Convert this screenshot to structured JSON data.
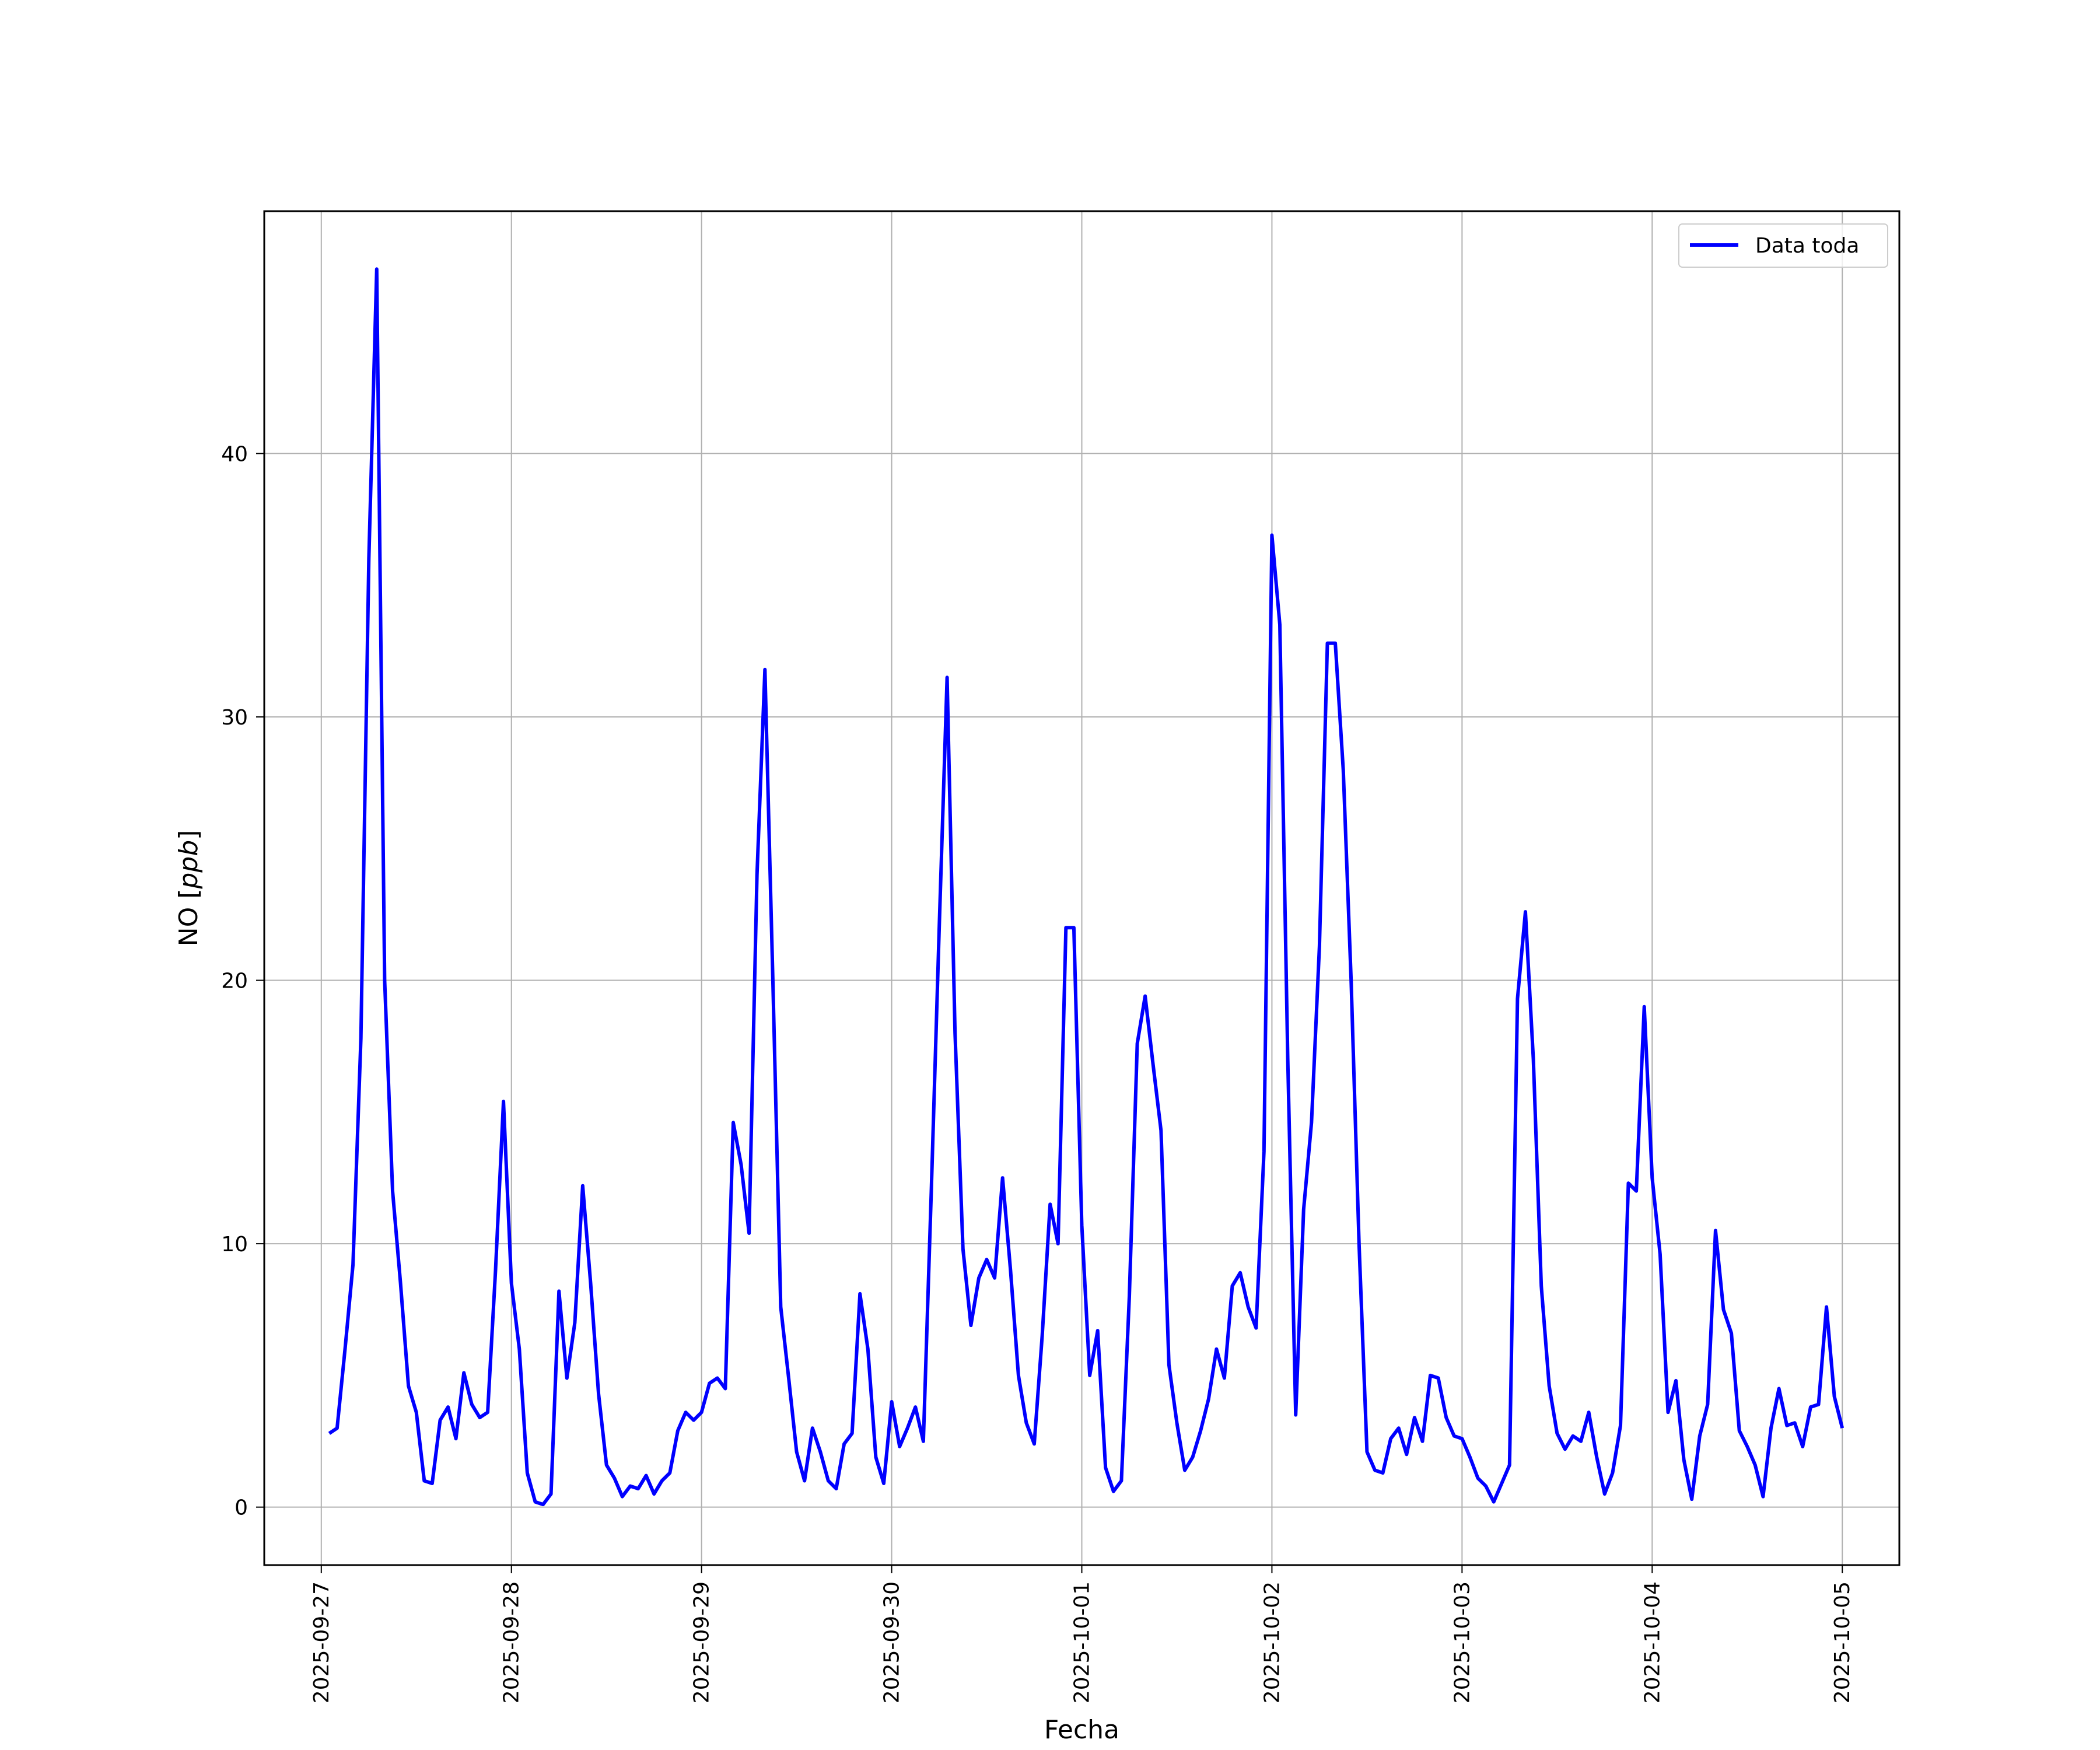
{
  "chart_data": {
    "type": "line",
    "xlabel": "Fecha",
    "ylabel": "NO [ppb]",
    "ylabel_parts": {
      "prefix": "NO [",
      "unit": "ppb",
      "suffix": "]"
    },
    "xlim": [
      "2025-09-26T16:48",
      "2025-10-05T07:12"
    ],
    "ylim": [
      -2.2,
      49.2
    ],
    "x_ticks": [
      "2025-09-27",
      "2025-09-28",
      "2025-09-29",
      "2025-09-30",
      "2025-10-01",
      "2025-10-02",
      "2025-10-03",
      "2025-10-04",
      "2025-10-05"
    ],
    "y_ticks": [
      0,
      10,
      20,
      30,
      40
    ],
    "y_tick_labels": [
      "0",
      "10",
      "20",
      "30",
      "40"
    ],
    "grid": true,
    "legend_position": "top-right",
    "colors": {
      "series": "#0000ff",
      "grid": "#b0b0b0",
      "axes": "#000000"
    },
    "series": [
      {
        "name": "Data toda",
        "x": [
          "2025-09-27T01:00",
          "2025-09-27T02:00",
          "2025-09-27T03:00",
          "2025-09-27T04:00",
          "2025-09-27T05:00",
          "2025-09-27T06:00",
          "2025-09-27T07:00",
          "2025-09-27T08:00",
          "2025-09-27T09:00",
          "2025-09-27T10:00",
          "2025-09-27T11:00",
          "2025-09-27T12:00",
          "2025-09-27T13:00",
          "2025-09-27T14:00",
          "2025-09-27T15:00",
          "2025-09-27T16:00",
          "2025-09-27T17:00",
          "2025-09-27T18:00",
          "2025-09-27T19:00",
          "2025-09-27T20:00",
          "2025-09-27T21:00",
          "2025-09-27T22:00",
          "2025-09-27T23:00",
          "2025-09-28T00:00",
          "2025-09-28T01:00",
          "2025-09-28T02:00",
          "2025-09-28T03:00",
          "2025-09-28T04:00",
          "2025-09-28T05:00",
          "2025-09-28T06:00",
          "2025-09-28T07:00",
          "2025-09-28T08:00",
          "2025-09-28T09:00",
          "2025-09-28T10:00",
          "2025-09-28T11:00",
          "2025-09-28T12:00",
          "2025-09-28T13:00",
          "2025-09-28T14:00",
          "2025-09-28T15:00",
          "2025-09-28T16:00",
          "2025-09-28T17:00",
          "2025-09-28T18:00",
          "2025-09-28T19:00",
          "2025-09-28T20:00",
          "2025-09-28T21:00",
          "2025-09-28T22:00",
          "2025-09-28T23:00",
          "2025-09-29T00:00",
          "2025-09-29T01:00",
          "2025-09-29T02:00",
          "2025-09-29T03:00",
          "2025-09-29T04:00",
          "2025-09-29T05:00",
          "2025-09-29T06:00",
          "2025-09-29T07:00",
          "2025-09-29T08:00",
          "2025-09-29T09:00",
          "2025-09-29T10:00",
          "2025-09-29T11:00",
          "2025-09-29T12:00",
          "2025-09-29T13:00",
          "2025-09-29T14:00",
          "2025-09-29T15:00",
          "2025-09-29T16:00",
          "2025-09-29T17:00",
          "2025-09-29T18:00",
          "2025-09-29T19:00",
          "2025-09-29T20:00",
          "2025-09-29T21:00",
          "2025-09-29T22:00",
          "2025-09-29T23:00",
          "2025-09-30T00:00",
          "2025-09-30T01:00",
          "2025-09-30T02:00",
          "2025-09-30T03:00",
          "2025-09-30T04:00",
          "2025-09-30T05:00",
          "2025-09-30T06:00",
          "2025-09-30T07:00",
          "2025-09-30T08:00",
          "2025-09-30T09:00",
          "2025-09-30T10:00",
          "2025-09-30T11:00",
          "2025-09-30T12:00",
          "2025-09-30T13:00",
          "2025-09-30T14:00",
          "2025-09-30T15:00",
          "2025-09-30T16:00",
          "2025-09-30T17:00",
          "2025-09-30T18:00",
          "2025-09-30T19:00",
          "2025-09-30T20:00",
          "2025-09-30T21:00",
          "2025-09-30T22:00",
          "2025-09-30T23:00",
          "2025-10-01T00:00",
          "2025-10-01T01:00",
          "2025-10-01T02:00",
          "2025-10-01T03:00",
          "2025-10-01T04:00",
          "2025-10-01T05:00",
          "2025-10-01T06:00",
          "2025-10-01T07:00",
          "2025-10-01T08:00",
          "2025-10-01T09:00",
          "2025-10-01T10:00",
          "2025-10-01T11:00",
          "2025-10-01T12:00",
          "2025-10-01T13:00",
          "2025-10-01T14:00",
          "2025-10-01T15:00",
          "2025-10-01T16:00",
          "2025-10-01T17:00",
          "2025-10-01T18:00",
          "2025-10-01T19:00",
          "2025-10-01T20:00",
          "2025-10-01T21:00",
          "2025-10-01T22:00",
          "2025-10-01T23:00",
          "2025-10-02T00:00",
          "2025-10-02T01:00",
          "2025-10-02T02:00",
          "2025-10-02T03:00",
          "2025-10-02T04:00",
          "2025-10-02T05:00",
          "2025-10-02T06:00",
          "2025-10-02T07:00",
          "2025-10-02T08:00",
          "2025-10-02T09:00",
          "2025-10-02T10:00",
          "2025-10-02T11:00",
          "2025-10-02T12:00",
          "2025-10-02T13:00",
          "2025-10-02T14:00",
          "2025-10-02T15:00",
          "2025-10-02T16:00",
          "2025-10-02T17:00",
          "2025-10-02T18:00",
          "2025-10-02T19:00",
          "2025-10-02T20:00",
          "2025-10-02T21:00",
          "2025-10-02T22:00",
          "2025-10-02T23:00",
          "2025-10-03T00:00",
          "2025-10-03T01:00",
          "2025-10-03T02:00",
          "2025-10-03T03:00",
          "2025-10-03T04:00",
          "2025-10-03T05:00",
          "2025-10-03T06:00",
          "2025-10-03T07:00",
          "2025-10-03T08:00",
          "2025-10-03T09:00",
          "2025-10-03T10:00",
          "2025-10-03T11:00",
          "2025-10-03T12:00",
          "2025-10-03T13:00",
          "2025-10-03T14:00",
          "2025-10-03T15:00",
          "2025-10-03T16:00",
          "2025-10-03T17:00",
          "2025-10-03T18:00",
          "2025-10-03T19:00",
          "2025-10-03T20:00",
          "2025-10-03T21:00",
          "2025-10-03T22:00",
          "2025-10-03T23:00",
          "2025-10-04T00:00",
          "2025-10-04T01:00",
          "2025-10-04T02:00",
          "2025-10-04T03:00",
          "2025-10-04T04:00",
          "2025-10-04T05:00",
          "2025-10-04T06:00",
          "2025-10-04T07:00",
          "2025-10-04T08:00",
          "2025-10-04T09:00",
          "2025-10-04T10:00",
          "2025-10-04T11:00",
          "2025-10-04T12:00",
          "2025-10-04T13:00",
          "2025-10-04T14:00",
          "2025-10-04T15:00",
          "2025-10-04T16:00",
          "2025-10-04T17:00",
          "2025-10-04T18:00",
          "2025-10-04T19:00",
          "2025-10-04T20:00",
          "2025-10-04T21:00",
          "2025-10-04T22:00",
          "2025-10-04T23:00",
          "2025-10-05T00:00"
        ],
        "values": [
          2.8,
          3.0,
          6.0,
          9.2,
          17.8,
          36.0,
          47.0,
          20.0,
          12.0,
          8.5,
          4.6,
          3.6,
          1.0,
          0.9,
          3.3,
          3.8,
          2.6,
          5.1,
          3.9,
          3.4,
          3.6,
          9.0,
          15.4,
          8.5,
          6.0,
          1.3,
          0.2,
          0.1,
          0.5,
          8.2,
          4.9,
          7.0,
          12.2,
          8.5,
          4.3,
          1.6,
          1.1,
          0.4,
          0.8,
          0.7,
          1.2,
          0.5,
          1.0,
          1.3,
          2.9,
          3.6,
          3.3,
          3.6,
          4.7,
          4.9,
          4.5,
          14.6,
          13.0,
          10.4,
          24.0,
          31.8,
          20.0,
          7.6,
          4.9,
          2.1,
          1.0,
          3.0,
          2.1,
          1.0,
          0.7,
          2.4,
          2.8,
          8.1,
          6.0,
          1.9,
          0.9,
          4.0,
          2.3,
          3.0,
          3.8,
          2.5,
          12.0,
          22.0,
          31.5,
          18.0,
          9.8,
          6.9,
          8.7,
          9.4,
          8.7,
          12.5,
          9.0,
          5.0,
          3.2,
          2.4,
          6.5,
          11.5,
          10.0,
          22.0,
          22.0,
          10.7,
          5.0,
          6.7,
          1.5,
          0.6,
          1.0,
          8.0,
          17.6,
          19.4,
          16.8,
          14.3,
          5.4,
          3.2,
          1.4,
          1.9,
          2.9,
          4.1,
          6.0,
          4.9,
          8.4,
          8.9,
          7.6,
          6.8,
          13.5,
          36.9,
          33.5,
          17.0,
          3.5,
          11.3,
          14.6,
          21.3,
          32.8,
          32.8,
          28.0,
          20.0,
          10.0,
          2.1,
          1.4,
          1.3,
          2.6,
          3.0,
          2.0,
          3.4,
          2.5,
          5.0,
          4.9,
          3.4,
          2.7,
          2.6,
          1.9,
          1.1,
          0.8,
          0.2,
          0.9,
          1.6,
          19.3,
          22.6,
          17.0,
          8.4,
          4.6,
          2.8,
          2.2,
          2.7,
          2.5,
          3.6,
          1.9,
          0.5,
          1.3,
          3.1,
          12.3,
          12.0,
          19.0,
          12.5,
          9.6,
          3.6,
          4.8,
          1.8,
          0.3,
          2.7,
          3.9,
          10.5,
          7.5,
          6.6,
          2.9,
          2.3,
          1.6,
          0.4,
          3.0,
          4.5,
          3.1,
          3.2,
          2.3,
          3.8,
          3.9,
          7.6,
          4.2,
          3.0
        ]
      }
    ]
  }
}
